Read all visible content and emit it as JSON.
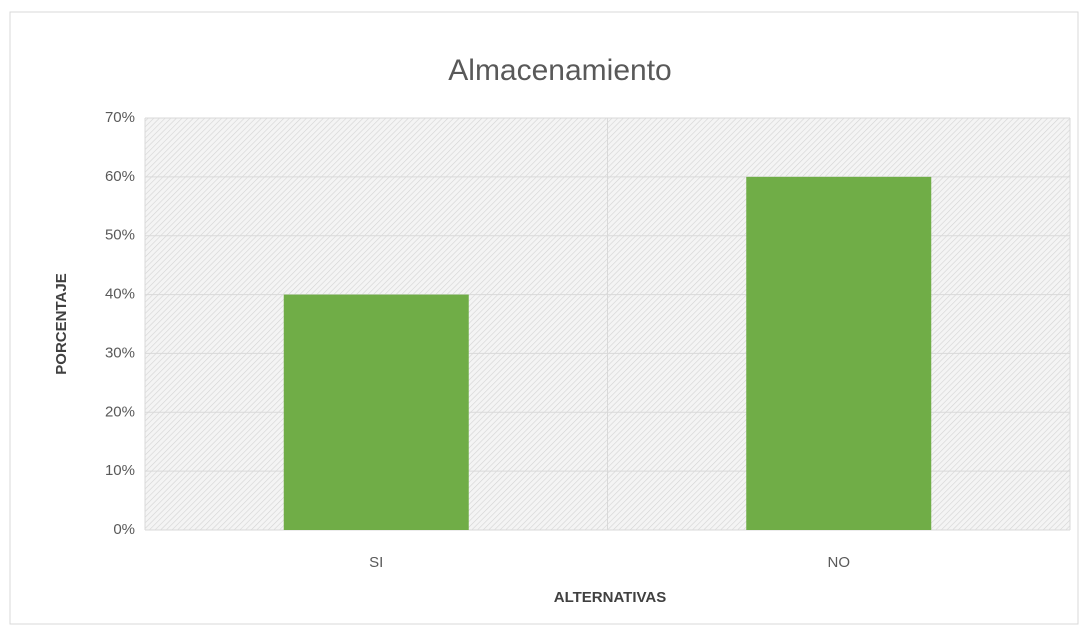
{
  "chart_data": {
    "type": "bar",
    "title": "Almacenamiento",
    "categories": [
      "SI",
      "NO"
    ],
    "values": [
      40,
      60
    ],
    "color": "#70ad47",
    "xlabel": "ALTERNATIVAS",
    "ylabel": "PORCENTAJE",
    "ylim": [
      0,
      70
    ],
    "yticks": [
      {
        "value": 0,
        "label": "0%"
      },
      {
        "value": 10,
        "label": "10%"
      },
      {
        "value": 20,
        "label": "20%"
      },
      {
        "value": 30,
        "label": "30%"
      },
      {
        "value": 40,
        "label": "40%"
      },
      {
        "value": 50,
        "label": "50%"
      },
      {
        "value": 60,
        "label": "60%"
      },
      {
        "value": 70,
        "label": "70%"
      }
    ],
    "grid": true
  }
}
